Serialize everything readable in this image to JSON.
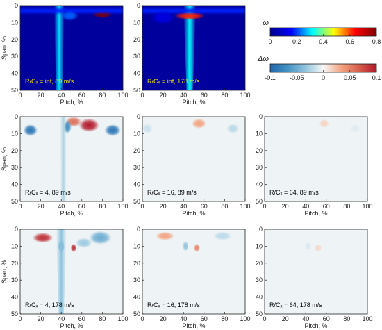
{
  "chart_data": [
    {
      "type": "heatmap",
      "quantity": "omega",
      "colormap": "jet",
      "label": "R/Cₓ = inf, 89 m/s",
      "xlabel": "Pitch, %",
      "ylabel": "Span, %",
      "xlim": [
        0,
        100
      ],
      "ylim": [
        50,
        0
      ],
      "xticks": [
        "0",
        "20",
        "40",
        "60",
        "80",
        "100"
      ],
      "yticks": [
        "0",
        "10",
        "20",
        "30",
        "40",
        "50"
      ],
      "label_color": "#f2e600",
      "features": [
        {
          "kind": "wake",
          "pitch": 38,
          "width": 3,
          "top_width": 5,
          "value": 0.3
        },
        {
          "kind": "blob",
          "pitch": 80,
          "span": 5,
          "width": 10,
          "height": 2.5,
          "value": 0.8
        },
        {
          "kind": "band",
          "span": 3,
          "height": 2.5,
          "value": 0.18
        },
        {
          "kind": "blob",
          "pitch": 48,
          "span": 6,
          "width": 9,
          "height": 3,
          "value": 0.22
        }
      ]
    },
    {
      "type": "heatmap",
      "quantity": "omega",
      "colormap": "jet",
      "label": "R/Cₓ = inf, 178 m/s",
      "xlabel": "Pitch, %",
      "ylabel": "",
      "xlim": [
        0,
        100
      ],
      "ylim": [
        50,
        0
      ],
      "xticks": [
        "0",
        "20",
        "40",
        "60",
        "80",
        "100"
      ],
      "yticks": [
        "0",
        "10",
        "20",
        "30",
        "40",
        "50"
      ],
      "label_color": "#f2e600",
      "features": [
        {
          "kind": "wake",
          "pitch": 46,
          "width": 3,
          "top_width": 6,
          "value": 0.32
        },
        {
          "kind": "blob",
          "pitch": 46,
          "span": 6,
          "width": 15,
          "height": 2.5,
          "value": 0.62
        },
        {
          "kind": "band",
          "span": 3,
          "height": 2.5,
          "value": 0.18
        },
        {
          "kind": "blob",
          "pitch": 20,
          "span": 7,
          "width": 12,
          "height": 4,
          "value": 0.12
        }
      ]
    },
    {
      "type": "heatmap",
      "quantity": "delta-omega",
      "colormap": "diverging",
      "label": "R/Cₓ = 4, 89 m/s",
      "xlabel": "Pitch, %",
      "ylabel": "Span, %",
      "xlim": [
        0,
        100
      ],
      "ylim": [
        50,
        0
      ],
      "xticks": [
        "0",
        "20",
        "40",
        "60",
        "80",
        "100"
      ],
      "yticks": [
        "0",
        "10",
        "20",
        "30",
        "40",
        "50"
      ],
      "label_color": "#000000",
      "features": [
        {
          "kind": "blob",
          "pitch": 67,
          "span": 5,
          "width": 10,
          "height": 4,
          "value": 0.1
        },
        {
          "kind": "blob",
          "pitch": 52,
          "span": 3,
          "width": 8,
          "height": 3,
          "value": 0.06
        },
        {
          "kind": "blob",
          "pitch": 10,
          "span": 8,
          "width": 7,
          "height": 3.5,
          "value": -0.09
        },
        {
          "kind": "blob",
          "pitch": 90,
          "span": 8,
          "width": 8,
          "height": 3.5,
          "value": -0.09
        },
        {
          "kind": "blob",
          "pitch": 46,
          "span": 6,
          "width": 4,
          "height": 4,
          "value": -0.07
        },
        {
          "kind": "wake",
          "pitch": 42,
          "width": 2.5,
          "top_width": 3,
          "value": -0.025
        }
      ]
    },
    {
      "type": "heatmap",
      "quantity": "delta-omega",
      "colormap": "diverging",
      "label": "R/Cₓ = 16, 89 m/s",
      "xlabel": "Pitch, %",
      "ylabel": "Span, %",
      "xlim": [
        0,
        100
      ],
      "ylim": [
        50,
        0
      ],
      "xticks": [
        "0",
        "20",
        "40",
        "60",
        "80",
        "100"
      ],
      "yticks": [
        "0",
        "10",
        "20",
        "30",
        "40",
        "50"
      ],
      "label_color": "#000000",
      "features": [
        {
          "kind": "blob",
          "pitch": 55,
          "span": 4,
          "width": 7,
          "height": 3,
          "value": 0.035
        },
        {
          "kind": "blob",
          "pitch": 88,
          "span": 7,
          "width": 6,
          "height": 3,
          "value": -0.02
        },
        {
          "kind": "blob",
          "pitch": 5,
          "span": 7,
          "width": 5,
          "height": 3,
          "value": -0.015
        }
      ]
    },
    {
      "type": "heatmap",
      "quantity": "delta-omega",
      "colormap": "diverging",
      "label": "R/Cₓ = 64, 89 m/s",
      "xlabel": "Pitch, %",
      "ylabel": "Span, %",
      "xlim": [
        0,
        100
      ],
      "ylim": [
        50,
        0
      ],
      "xticks": [
        "0",
        "20",
        "40",
        "60",
        "80",
        "100"
      ],
      "yticks": [
        "0",
        "10",
        "20",
        "30",
        "40",
        "50"
      ],
      "label_color": "#000000",
      "features": [
        {
          "kind": "blob",
          "pitch": 58,
          "span": 4,
          "width": 5,
          "height": 2.5,
          "value": 0.015
        },
        {
          "kind": "blob",
          "pitch": 88,
          "span": 7,
          "width": 5,
          "height": 2.5,
          "value": -0.008
        }
      ]
    },
    {
      "type": "heatmap",
      "quantity": "delta-omega",
      "colormap": "diverging",
      "label": "R/Cₓ = 4, 178 m/s",
      "xlabel": "Pitch, %",
      "ylabel": "Span, %",
      "xlim": [
        0,
        100
      ],
      "ylim": [
        50,
        0
      ],
      "xticks": [
        "0",
        "20",
        "40",
        "60",
        "80",
        "100"
      ],
      "yticks": [
        "0",
        "10",
        "20",
        "30",
        "40",
        "50"
      ],
      "label_color": "#000000",
      "features": [
        {
          "kind": "blob",
          "pitch": 22,
          "span": 5,
          "width": 10,
          "height": 3,
          "value": 0.09
        },
        {
          "kind": "blob",
          "pitch": 78,
          "span": 5,
          "width": 11,
          "height": 4,
          "value": -0.05
        },
        {
          "kind": "blob",
          "pitch": 40,
          "span": 10,
          "width": 3,
          "height": 4,
          "value": -0.08
        },
        {
          "kind": "blob",
          "pitch": 52,
          "span": 11,
          "width": 3,
          "height": 2.5,
          "value": 0.09
        },
        {
          "kind": "blob",
          "pitch": 62,
          "span": 8,
          "width": 8,
          "height": 3,
          "value": -0.03
        },
        {
          "kind": "wake",
          "pitch": 40,
          "width": 2.5,
          "top_width": 5,
          "value": -0.035
        }
      ]
    },
    {
      "type": "heatmap",
      "quantity": "delta-omega",
      "colormap": "diverging",
      "label": "R/Cₓ = 16, 178 m/s",
      "xlabel": "Pitch, %",
      "ylabel": "Span, %",
      "xlim": [
        0,
        100
      ],
      "ylim": [
        50,
        0
      ],
      "xticks": [
        "0",
        "20",
        "40",
        "60",
        "80",
        "100"
      ],
      "yticks": [
        "0",
        "10",
        "20",
        "30",
        "40",
        "50"
      ],
      "label_color": "#000000",
      "features": [
        {
          "kind": "blob",
          "pitch": 22,
          "span": 4,
          "width": 9,
          "height": 2.5,
          "value": 0.035
        },
        {
          "kind": "blob",
          "pitch": 78,
          "span": 4,
          "width": 9,
          "height": 2.5,
          "value": -0.02
        },
        {
          "kind": "blob",
          "pitch": 42,
          "span": 10,
          "width": 3,
          "height": 3,
          "value": -0.035
        },
        {
          "kind": "blob",
          "pitch": 53,
          "span": 11,
          "width": 3,
          "height": 2.5,
          "value": 0.05
        }
      ]
    },
    {
      "type": "heatmap",
      "quantity": "delta-omega",
      "colormap": "diverging",
      "label": "R/Cₓ = 64, 178 m/s",
      "xlabel": "Pitch, %",
      "ylabel": "Span, %",
      "xlim": [
        0,
        100
      ],
      "ylim": [
        50,
        0
      ],
      "xticks": [
        "0",
        "20",
        "40",
        "60",
        "80",
        "100"
      ],
      "yticks": [
        "0",
        "10",
        "20",
        "30",
        "40",
        "50"
      ],
      "label_color": "#000000",
      "features": [
        {
          "kind": "blob",
          "pitch": 52,
          "span": 11,
          "width": 4,
          "height": 2.5,
          "value": 0.012
        },
        {
          "kind": "blob",
          "pitch": 42,
          "span": 10,
          "width": 3,
          "height": 2.5,
          "value": -0.01
        }
      ]
    }
  ],
  "colorbars": {
    "omega": {
      "label": "ω",
      "min": 0,
      "max": 0.8,
      "ticks": [
        "0",
        "0.2",
        "0.4",
        "0.6",
        "0.8"
      ],
      "colors": [
        "#00008f",
        "#0000ff",
        "#00ffff",
        "#ffff00",
        "#ff0000",
        "#800000"
      ]
    },
    "delta": {
      "label": "Δω",
      "min": -0.1,
      "max": 0.1,
      "ticks": [
        "-0.1",
        "-0.05",
        "0",
        "0.05",
        "0.1"
      ],
      "colors": [
        "#2166ac",
        "#4393c3",
        "#92c5de",
        "#f7f7f7",
        "#f4a582",
        "#d6604d",
        "#b2182b"
      ]
    }
  }
}
